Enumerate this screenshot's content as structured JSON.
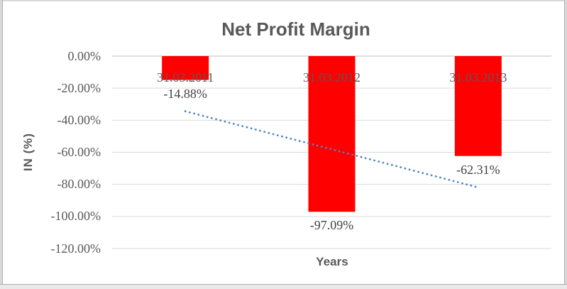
{
  "chart_data": {
    "type": "bar",
    "title": "Net Profit Margin",
    "xlabel": "Years",
    "ylabel": "IN (%)",
    "categories": [
      "31.03.2011",
      "31.03.2012",
      "31.03.2013"
    ],
    "values": [
      -14.88,
      -97.09,
      -62.31
    ],
    "data_labels": [
      "-14.88%",
      "-97.09%",
      "-62.31%"
    ],
    "series_name": "Net Profit Margin",
    "y_ticks": [
      {
        "value": 0,
        "label": "0.00%"
      },
      {
        "value": -20,
        "label": "-20.00%"
      },
      {
        "value": -40,
        "label": "-40.00%"
      },
      {
        "value": -60,
        "label": "-60.00%"
      },
      {
        "value": -80,
        "label": "-80.00%"
      },
      {
        "value": -100,
        "label": "-100.00%"
      },
      {
        "value": -120,
        "label": "-120.00%"
      }
    ],
    "ylim": [
      -120,
      0
    ],
    "grid": "horizontal",
    "legend": "none",
    "colors": {
      "bar": "#ff0000",
      "gridline": "#d9d9d9",
      "axis_line": "#c0c0c0",
      "title_text": "#595959",
      "tick_text": "#595959",
      "category_text": "#595959",
      "data_label_text": "#404040",
      "trendline": "#4e86c8",
      "frame_light": "#d9d9d9",
      "frame_line": "#aeaeae"
    },
    "trendline": {
      "type": "linear",
      "style": "dotted",
      "color": "#4e86c8",
      "start_value": -34.4,
      "end_value": -81.9
    }
  }
}
